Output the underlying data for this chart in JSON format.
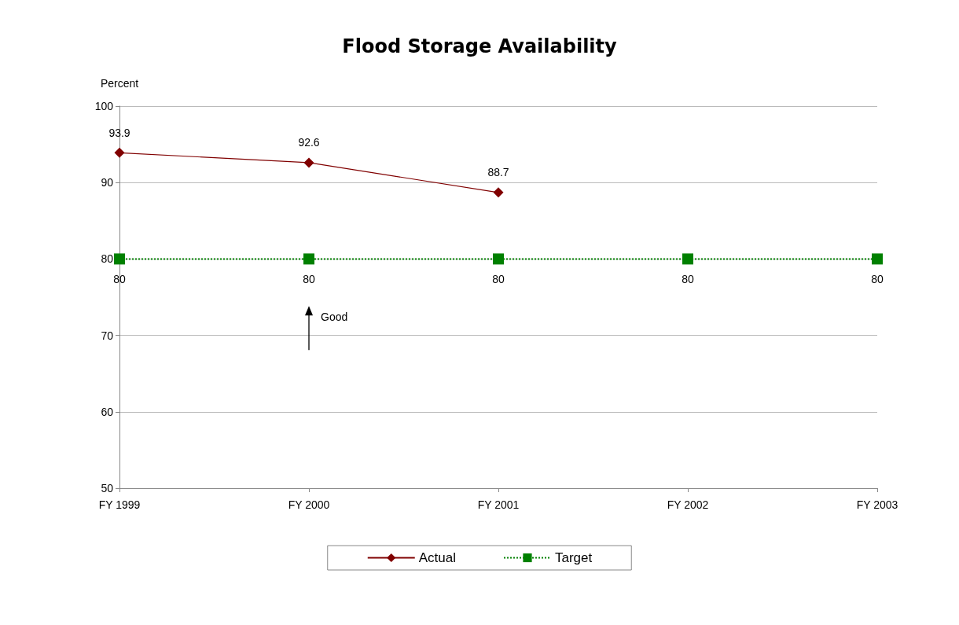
{
  "chart_data": {
    "type": "line",
    "title": "Flood Storage Availability",
    "ylabel": "Percent",
    "categories": [
      "FY 1999",
      "FY 2000",
      "FY 2001",
      "FY 2002",
      "FY 2003"
    ],
    "series": [
      {
        "name": "Actual",
        "color": "#800000",
        "values": [
          93.9,
          92.6,
          88.7,
          null,
          null
        ],
        "marker": "diamond",
        "line_style": "solid"
      },
      {
        "name": "Target",
        "color": "#008000",
        "values": [
          80,
          80,
          80,
          80,
          80
        ],
        "marker": "square",
        "line_style": "dotted"
      }
    ],
    "ylim": [
      50,
      100
    ],
    "yticks": [
      50,
      60,
      70,
      80,
      90,
      100
    ],
    "grid": "y",
    "legend": "bottom",
    "data_labels": true,
    "annotations": [
      "Good"
    ]
  }
}
